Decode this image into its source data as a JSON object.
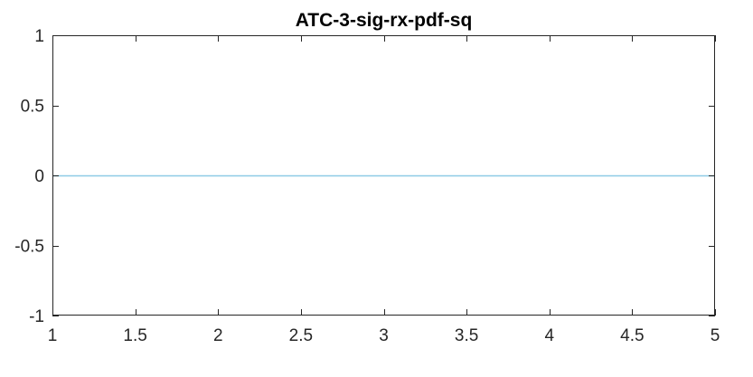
{
  "chart_data": {
    "type": "line",
    "title": "ATC-3-sig-rx-pdf-sq",
    "xlabel": "",
    "ylabel": "",
    "xlim": [
      1,
      5
    ],
    "ylim": [
      -1,
      1
    ],
    "x_ticks": [
      1,
      1.5,
      2,
      2.5,
      3,
      3.5,
      4,
      4.5,
      5
    ],
    "x_tick_labels": [
      "1",
      "1.5",
      "2",
      "2.5",
      "3",
      "3.5",
      "4",
      "4.5",
      "5"
    ],
    "y_ticks": [
      1,
      0.5,
      0,
      -0.5,
      -1
    ],
    "y_tick_labels": [
      "1",
      "0.5",
      "0",
      "-0.5",
      "-1"
    ],
    "grid": false,
    "series": [
      {
        "color": "#8ecae6",
        "x": [
          1,
          5
        ],
        "y": [
          0,
          0
        ]
      }
    ]
  }
}
